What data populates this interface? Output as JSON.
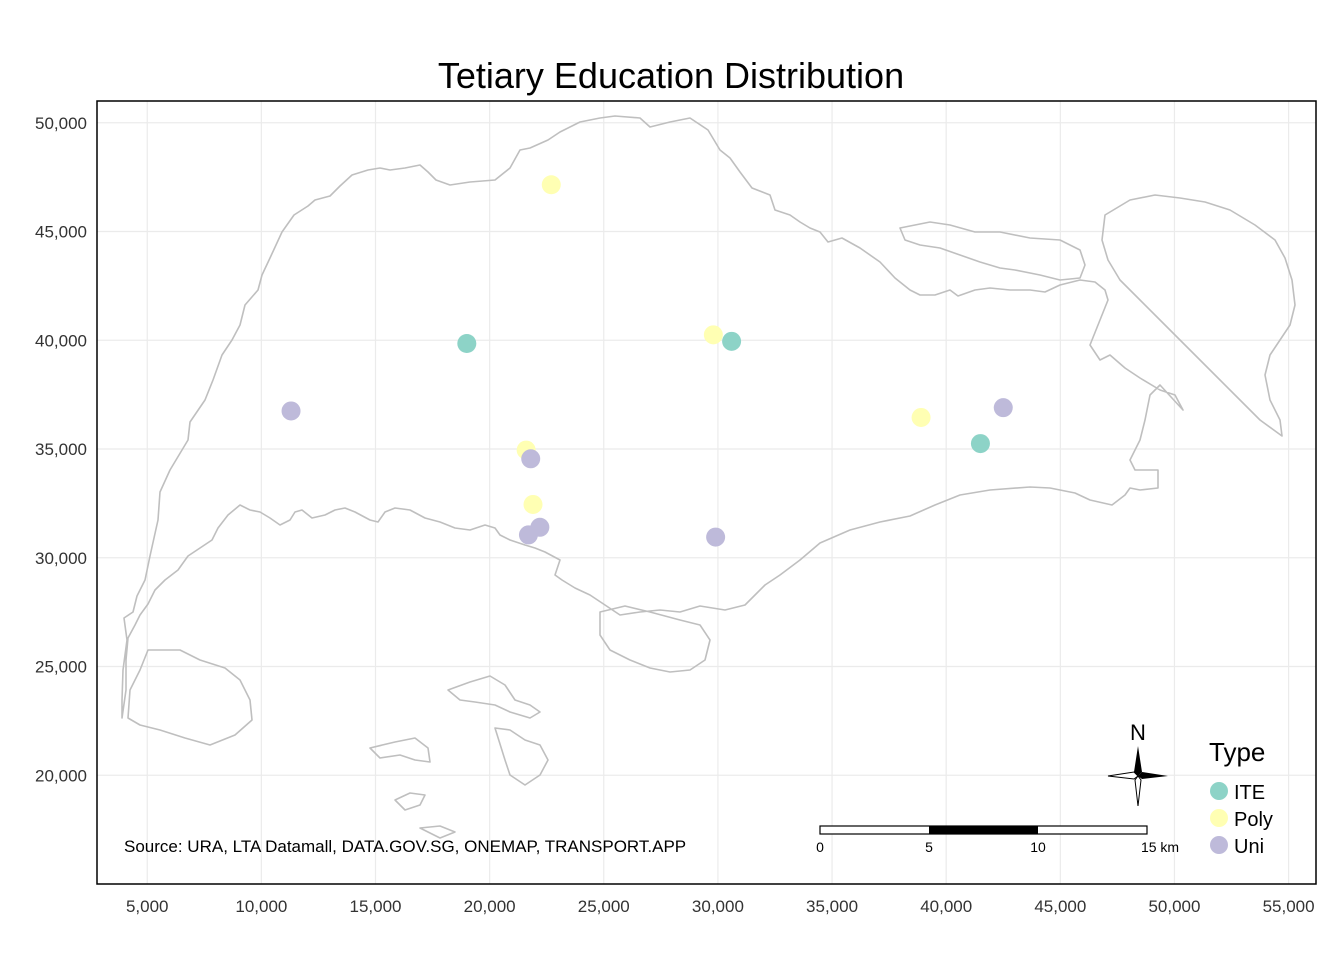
{
  "chart_data": {
    "type": "scatter",
    "title": "Tetiary Education Distribution",
    "xlim": [
      2800,
      56200
    ],
    "ylim": [
      15000,
      51000
    ],
    "x_ticks": [
      5000,
      10000,
      15000,
      20000,
      25000,
      30000,
      35000,
      40000,
      45000,
      50000,
      55000
    ],
    "x_tick_labels": [
      "5,000",
      "10,000",
      "15,000",
      "20,000",
      "25,000",
      "30,000",
      "35,000",
      "40,000",
      "45,000",
      "50,000",
      "55,000"
    ],
    "y_ticks": [
      20000,
      25000,
      30000,
      35000,
      40000,
      45000,
      50000
    ],
    "y_tick_labels": [
      "20,000",
      "25,000",
      "30,000",
      "35,000",
      "40,000",
      "45,000",
      "50,000"
    ],
    "grid": true,
    "legend": {
      "title": "Type",
      "position": "bottom-right",
      "entries": [
        {
          "name": "ITE",
          "color": "#8dd3c7"
        },
        {
          "name": "Poly",
          "color": "#ffffb3"
        },
        {
          "name": "Uni",
          "color": "#bebada"
        }
      ]
    },
    "series": [
      {
        "name": "ITE",
        "color": "#8dd3c7",
        "points": [
          [
            19000,
            39850
          ],
          [
            30600,
            39950
          ],
          [
            41500,
            35250
          ]
        ]
      },
      {
        "name": "Poly",
        "color": "#ffffb3",
        "points": [
          [
            22700,
            47150
          ],
          [
            29800,
            40250
          ],
          [
            21600,
            34950
          ],
          [
            21900,
            32450
          ],
          [
            38900,
            36450
          ]
        ]
      },
      {
        "name": "Uni",
        "color": "#bebada",
        "points": [
          [
            11300,
            36750
          ],
          [
            21800,
            34550
          ],
          [
            21700,
            31050
          ],
          [
            22200,
            31400
          ],
          [
            29900,
            30950
          ],
          [
            42500,
            36900
          ]
        ]
      }
    ]
  },
  "caption": "Source: URA, LTA Datamall, DATA.GOV.SG, ONEMAP, TRANSPORT.APP",
  "scale_bar": {
    "labels": [
      "0",
      "5",
      "10",
      "15 km"
    ]
  },
  "north_arrow": {
    "label": "N",
    "icon": "north-arrow-icon"
  },
  "colors": {
    "outline": "#bfbfbf",
    "grid": "#ebebeb",
    "panel_border": "#000000"
  }
}
